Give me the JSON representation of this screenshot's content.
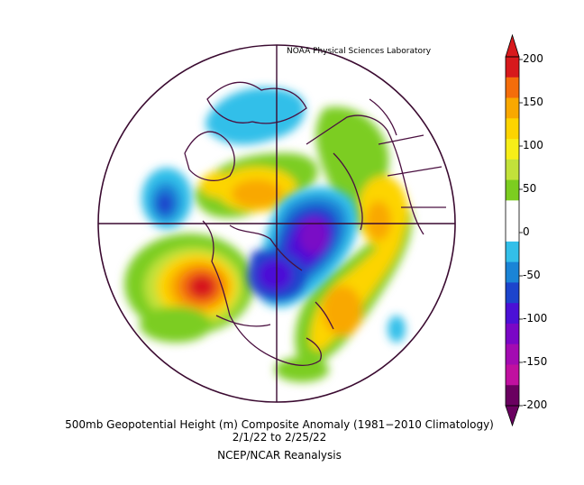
{
  "credit": "NOAA Physical Sciences Laboratory",
  "caption": {
    "line1": "500mb Geopotential Height (m) Composite Anomaly (1981−2010 Climatology)",
    "line2": "2/1/22   to 2/25/22",
    "line3": "NCEP/NCAR Reanalysis"
  },
  "colorbar": {
    "labels": [
      "200",
      "150",
      "100",
      "50",
      "0",
      "-50",
      "-100",
      "-150",
      "-200"
    ],
    "colors": [
      "#d7191c",
      "#f46d0b",
      "#f9a800",
      "#fdd400",
      "#f7ee18",
      "#c2e23a",
      "#7ccd20",
      "#ffffff",
      "#ffffff",
      "#33bfe9",
      "#1a84d6",
      "#1c44cc",
      "#4b10d6",
      "#7a07c6",
      "#a30bb2",
      "#c010a0",
      "#6a0060"
    ]
  }
}
